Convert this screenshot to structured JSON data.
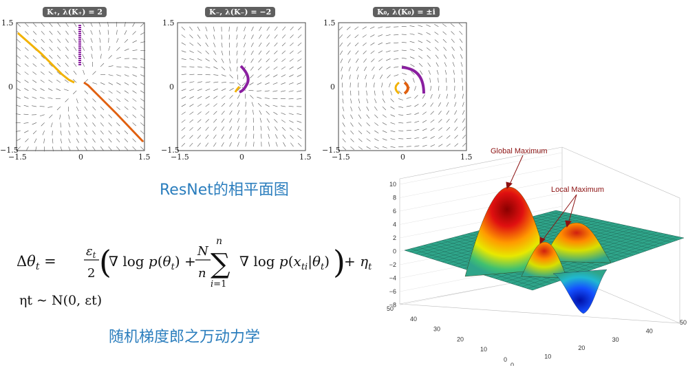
{
  "panels": [
    {
      "title": "K₊, λ(K₊) = 2",
      "xticks": [
        "−1.5",
        "0",
        "1.5"
      ],
      "yticks": [
        "1.5",
        "0",
        "−1.5"
      ]
    },
    {
      "title": "K₋, λ(K₋) = −2",
      "xticks": [
        "−1.5",
        "0",
        "1.5"
      ],
      "yticks": [
        "1.5",
        "0",
        "−1.5"
      ]
    },
    {
      "title": "K₀, λ(K₀) = ±i",
      "xticks": [
        "−1.5",
        "0",
        "1.5"
      ],
      "yticks": [
        "1.5",
        "0",
        "−1.5"
      ]
    }
  ],
  "caption_resnet": "ResNet的相平面图",
  "caption_sgd": "随机梯度郎之万动力学",
  "equation": {
    "line2": "ηt ∼ N(0, εt)"
  },
  "surface": {
    "global_label": "Global Maximum",
    "local_label": "Local Maximum",
    "zticks": [
      "10",
      "8",
      "6",
      "4",
      "2",
      "0",
      "−2",
      "−4",
      "−6",
      "−8"
    ],
    "xticks": [
      "0",
      "10",
      "20",
      "30",
      "40",
      "50"
    ],
    "yticks": [
      "50",
      "40",
      "30",
      "20",
      "10",
      "0"
    ],
    "colors": {
      "flat": "#2fa58a",
      "high": "#b20000",
      "low": "#0a2ad8"
    }
  }
}
